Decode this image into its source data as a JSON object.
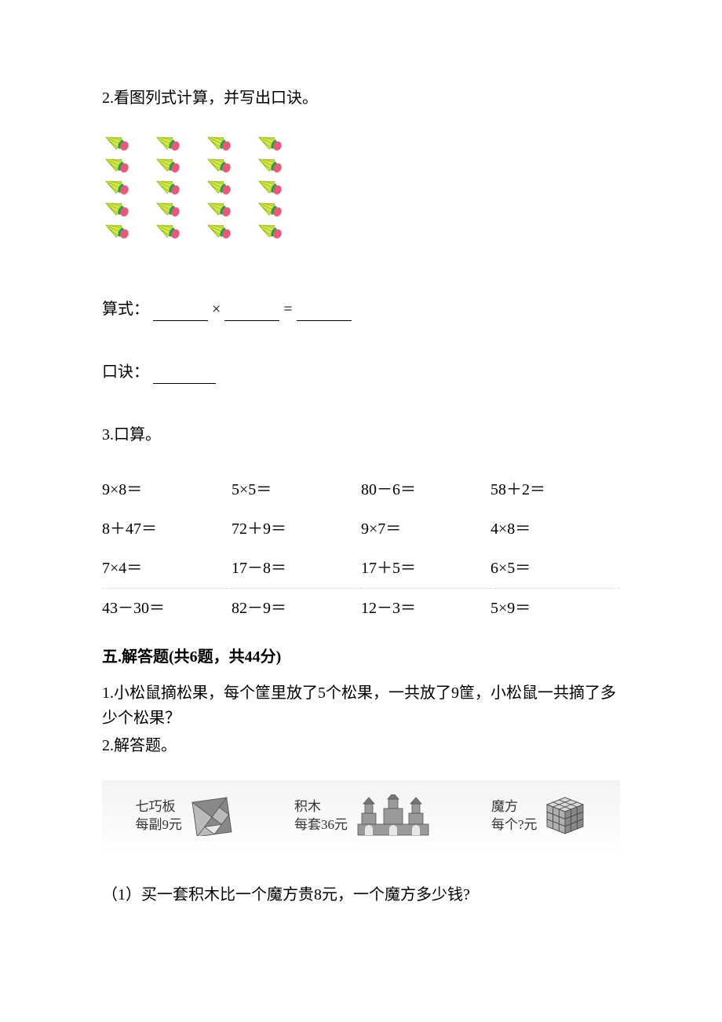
{
  "q2": {
    "text": "2.看图列式计算，并写出口诀。",
    "formula_prefix": "算式：",
    "times_symbol": "×",
    "equals_symbol": "=",
    "koujue_prefix": "口诀：",
    "shuttlecock": {
      "columns": 4,
      "per_column": 5,
      "colors": {
        "feather": "#d3e84a",
        "feather_dark": "#8fa818",
        "band": "#2a9d4a",
        "base": "#e85a7a"
      }
    }
  },
  "q3": {
    "text": "3.口算。",
    "rows": [
      [
        "9×8＝",
        "5×5＝",
        "80－6＝",
        "58＋2＝"
      ],
      [
        "8＋47＝",
        "72＋9＝",
        "9×7＝",
        "4×8＝"
      ],
      [
        "7×4＝",
        "17－8＝",
        "17＋5＝",
        "6×5＝"
      ],
      [
        "43－30＝",
        "82－9＝",
        "12－3＝",
        "5×9＝"
      ]
    ]
  },
  "section5": {
    "heading": "五.解答题(共6题，共44分)",
    "q1": "1.小松鼠摘松果，每个筐里放了5个松果，一共放了9筐，小松鼠一共摘了多少个松果？",
    "q2": "2.解答题。",
    "products": {
      "tangram": {
        "line1": "七巧板",
        "line2": "每副9元"
      },
      "blocks": {
        "line1": "积木",
        "line2": "每套36元"
      },
      "cube": {
        "line1": "魔方",
        "line2": "每个?元"
      },
      "colors": {
        "tangram_fill": "#888888",
        "blocks_fill": "#9a9a9a",
        "cube_fill": "#b0b0b0",
        "cube_light": "#d8d8d8"
      }
    },
    "sub1": "（1）买一套积木比一个魔方贵8元，一个魔方多少钱?"
  }
}
